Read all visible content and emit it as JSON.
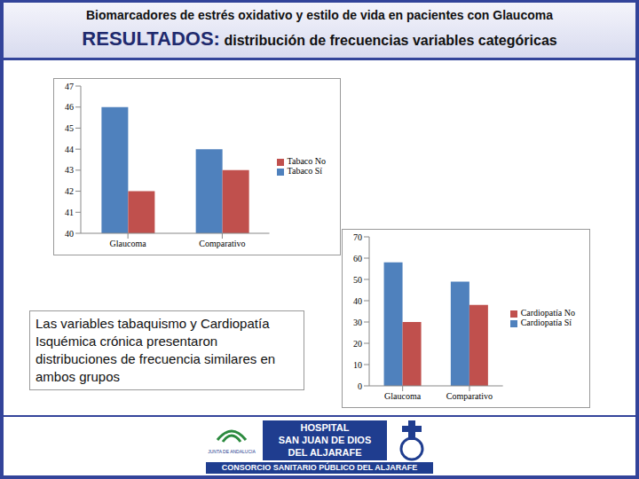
{
  "header": {
    "title": "Biomarcadores de estrés oxidativo y estilo de vida en pacientes con Glaucoma",
    "section": "RESULTADOS:",
    "subtitle": "distribución de frecuencias variables categóricas"
  },
  "chart_data": [
    {
      "type": "bar",
      "categories": [
        "Glaucoma",
        "Comparativo"
      ],
      "series": [
        {
          "name": "Tabaco Sí",
          "color": "#4f81bd",
          "values": [
            46,
            44
          ]
        },
        {
          "name": "Tabaco No",
          "color": "#c0504d",
          "values": [
            42,
            43
          ]
        }
      ],
      "ylim": [
        40,
        47
      ],
      "yticks": [
        40,
        41,
        42,
        43,
        44,
        45,
        46,
        47
      ],
      "grid": false,
      "legend": "right"
    },
    {
      "type": "bar",
      "categories": [
        "Glaucoma",
        "Comparativo"
      ],
      "series": [
        {
          "name": "Cardiopatía Sí",
          "color": "#4f81bd",
          "values": [
            58,
            49
          ]
        },
        {
          "name": "Cardiopatía No",
          "color": "#c0504d",
          "values": [
            30,
            38
          ]
        }
      ],
      "ylim": [
        0,
        70
      ],
      "yticks": [
        0,
        10,
        20,
        30,
        40,
        50,
        60,
        70
      ],
      "grid": false,
      "legend": "right"
    }
  ],
  "note": "Las variables tabaquismo y Cardiopatía Isquémica crónica presentaron distribuciones de frecuencia similares en ambos grupos",
  "footer": {
    "junta": "JUNTA DE ANDALUCIA",
    "hospital": [
      "HOSPITAL",
      "SAN JUAN DE DIOS",
      "DEL ALJARAFE"
    ],
    "consorcio": "CONSORCIO SANITARIO PÚBLICO DEL ALJARAFE"
  }
}
